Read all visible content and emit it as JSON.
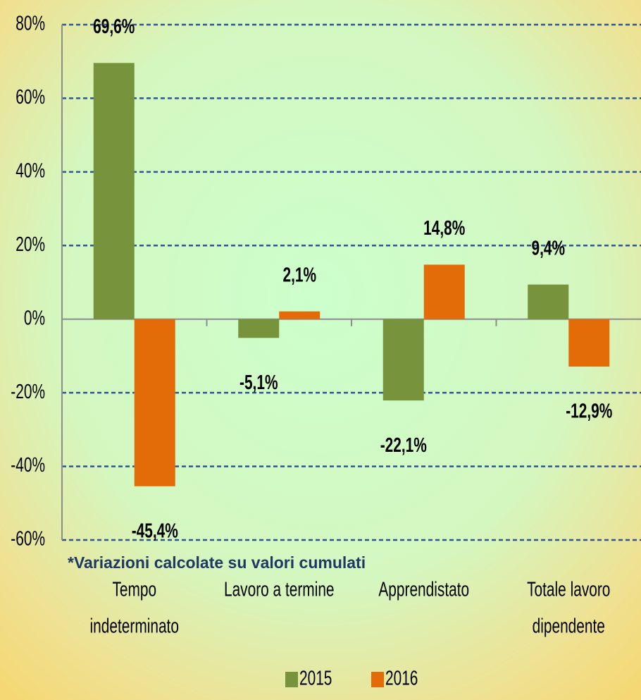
{
  "chart_data": {
    "type": "bar",
    "categories": [
      [
        "Tempo",
        "indeterminato"
      ],
      [
        "Lavoro a termine"
      ],
      [
        "Apprendistato"
      ],
      [
        "Totale lavoro",
        "dipendente"
      ]
    ],
    "series": [
      {
        "name": "2015",
        "color": "#77933c",
        "values": [
          69.6,
          -5.1,
          -22.1,
          9.4
        ],
        "value_labels": [
          "69,6%",
          "-5,1%",
          "-22,1%",
          "9,4%"
        ]
      },
      {
        "name": "2016",
        "color": "#e36c09",
        "values": [
          -45.4,
          2.1,
          14.8,
          -12.9
        ],
        "value_labels": [
          "-45,4%",
          "2,1%",
          "14,8%",
          "-12,9%"
        ]
      }
    ],
    "ylim": [
      -60,
      80
    ],
    "yticks": [
      {
        "value": -60,
        "label": "-60%"
      },
      {
        "value": -40,
        "label": "-40%"
      },
      {
        "value": -20,
        "label": "-20%"
      },
      {
        "value": 0,
        "label": "0%"
      },
      {
        "value": 20,
        "label": "20%"
      },
      {
        "value": 40,
        "label": "40%"
      },
      {
        "value": 60,
        "label": "60%"
      },
      {
        "value": 80,
        "label": "80%"
      }
    ],
    "grid": true,
    "annotation": "*Variazioni calcolate su valori cumulati",
    "legend": "bottom"
  }
}
